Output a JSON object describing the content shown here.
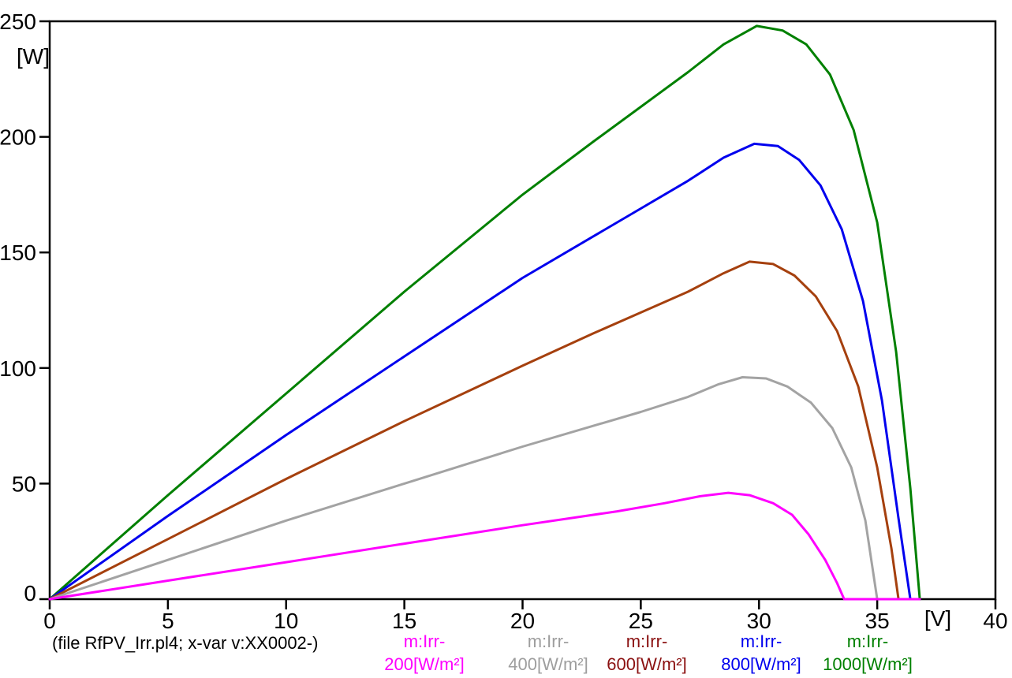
{
  "chart_data": {
    "type": "line",
    "title": "",
    "xlabel": "[V]",
    "ylabel": "[W]",
    "xlim": [
      0,
      40
    ],
    "ylim": [
      0,
      250
    ],
    "x_ticks": [
      0,
      5,
      10,
      15,
      20,
      25,
      30,
      35,
      40
    ],
    "y_ticks": [
      0,
      50,
      100,
      150,
      200,
      250
    ],
    "grid": false,
    "legend_position": "bottom",
    "footer": "(file RfPV_Irr.pl4; x-var v:XX0002-)",
    "series": [
      {
        "name": "m:Irr-200[W/m²]",
        "label_line1": "m:Irr-",
        "label_line2": "200[W/m²]",
        "color": "#FF00FF",
        "label_color": "#FF00FF",
        "points": [
          [
            0,
            0
          ],
          [
            5,
            8
          ],
          [
            10,
            16
          ],
          [
            15,
            24
          ],
          [
            20,
            32
          ],
          [
            24,
            38
          ],
          [
            26,
            41.5
          ],
          [
            27.5,
            44.5
          ],
          [
            28.7,
            46
          ],
          [
            29.6,
            45
          ],
          [
            30.6,
            41.5
          ],
          [
            31.4,
            36.5
          ],
          [
            32.1,
            28
          ],
          [
            32.8,
            17
          ],
          [
            33.3,
            7
          ],
          [
            33.6,
            0
          ],
          [
            36.8,
            0
          ]
        ]
      },
      {
        "name": "m:Irr-400[W/m²]",
        "label_line1": "m:Irr-",
        "label_line2": "400[W/m²]",
        "color": "#A3A3A3",
        "label_color": "#9E9E9E",
        "points": [
          [
            0,
            0
          ],
          [
            5,
            17
          ],
          [
            10,
            34
          ],
          [
            15,
            50
          ],
          [
            20,
            66
          ],
          [
            23,
            75
          ],
          [
            25,
            81
          ],
          [
            27,
            87.5
          ],
          [
            28.3,
            93
          ],
          [
            29.3,
            96
          ],
          [
            30.3,
            95.5
          ],
          [
            31.2,
            92
          ],
          [
            32.2,
            85
          ],
          [
            33.1,
            74
          ],
          [
            33.9,
            57
          ],
          [
            34.5,
            34
          ],
          [
            35,
            0
          ]
        ]
      },
      {
        "name": "m:Irr-600[W/m²]",
        "label_line1": "m:Irr-",
        "label_line2": "600[W/m²]",
        "color": "#A5400E",
        "label_color": "#8B1111",
        "points": [
          [
            0,
            0
          ],
          [
            5,
            26
          ],
          [
            10,
            52
          ],
          [
            15,
            77
          ],
          [
            20,
            101
          ],
          [
            23,
            115
          ],
          [
            25,
            124
          ],
          [
            27,
            133
          ],
          [
            28.5,
            141
          ],
          [
            29.6,
            146
          ],
          [
            30.6,
            145
          ],
          [
            31.5,
            140
          ],
          [
            32.4,
            131
          ],
          [
            33.3,
            116
          ],
          [
            34.2,
            92
          ],
          [
            35,
            57
          ],
          [
            35.6,
            22
          ],
          [
            35.9,
            0
          ]
        ]
      },
      {
        "name": "m:Irr-800[W/m²]",
        "label_line1": "m:Irr-",
        "label_line2": "800[W/m²]",
        "color": "#0000EE",
        "label_color": "#0000EE",
        "points": [
          [
            0,
            0
          ],
          [
            5,
            36
          ],
          [
            10,
            71
          ],
          [
            15,
            105
          ],
          [
            20,
            139
          ],
          [
            23,
            157
          ],
          [
            25,
            169
          ],
          [
            27,
            181
          ],
          [
            28.5,
            191
          ],
          [
            29.8,
            197
          ],
          [
            30.8,
            196
          ],
          [
            31.7,
            190
          ],
          [
            32.6,
            179
          ],
          [
            33.5,
            160
          ],
          [
            34.4,
            129
          ],
          [
            35.2,
            86
          ],
          [
            35.9,
            35
          ],
          [
            36.4,
            0
          ]
        ]
      },
      {
        "name": "m:Irr-1000[W/m²]",
        "label_line1": "m:Irr-",
        "label_line2": "1000[W/m²]",
        "color": "#008000",
        "label_color": "#008000",
        "points": [
          [
            0,
            0
          ],
          [
            5,
            45
          ],
          [
            10,
            89
          ],
          [
            15,
            133
          ],
          [
            20,
            175
          ],
          [
            23,
            198
          ],
          [
            25,
            213
          ],
          [
            27,
            228
          ],
          [
            28.5,
            240
          ],
          [
            29.9,
            248
          ],
          [
            31,
            246
          ],
          [
            32,
            240
          ],
          [
            33,
            227
          ],
          [
            34,
            203
          ],
          [
            35,
            163
          ],
          [
            35.8,
            107
          ],
          [
            36.4,
            48
          ],
          [
            36.8,
            0
          ]
        ]
      }
    ]
  }
}
